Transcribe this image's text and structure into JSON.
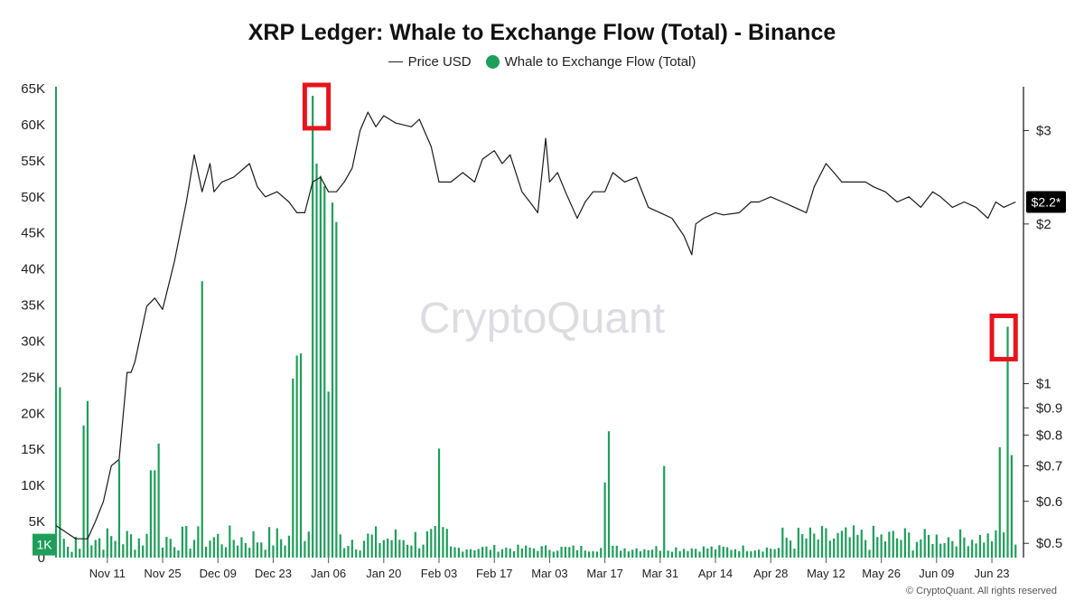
{
  "chart_data": {
    "type": "bar",
    "title": "XRP Ledger: Whale to Exchange Flow (Total) - Binance",
    "legend": [
      "Price USD",
      "Whale to Exchange Flow (Total)"
    ],
    "legend_placement": "top-center",
    "grid": false,
    "colors": {
      "flow": "#1e9e5a",
      "price": "#1a1a1a",
      "highlight": "#e8141b",
      "current_marker": "#000000"
    },
    "left_axis": {
      "ylim": [
        0,
        65000
      ],
      "ticks": [
        0,
        5000,
        10000,
        15000,
        20000,
        25000,
        30000,
        35000,
        40000,
        45000,
        50000,
        55000,
        60000,
        65000
      ],
      "tick_labels": [
        "0",
        "5K",
        "10K",
        "15K",
        "20K",
        "25K",
        "30K",
        "35K",
        "40K",
        "45K",
        "50K",
        "55K",
        "60K",
        "65K"
      ],
      "current_marker_label": "1K"
    },
    "right_axis": {
      "scale": "log",
      "ylim": [
        0.47,
        3.6
      ],
      "ticks": [
        0.5,
        0.6,
        0.7,
        0.8,
        0.9,
        1,
        2,
        3
      ],
      "tick_labels": [
        "$0.5",
        "$0.6",
        "$0.7",
        "$0.8",
        "$0.9",
        "$1",
        "$2",
        "$3"
      ],
      "current_marker_label": "$2.2*"
    },
    "x_axis": {
      "tick_labels": [
        "Nov 11",
        "Nov 25",
        "Dec 09",
        "Dec 23",
        "Jan 06",
        "Jan 20",
        "Feb 03",
        "Feb 17",
        "Mar 03",
        "Mar 17",
        "Mar 31",
        "Apr 14",
        "Apr 28",
        "May 12",
        "May 26",
        "Jun 09",
        "Jun 23"
      ],
      "start_date": "Oct 29",
      "end_date": "Jun 29"
    },
    "flow_series": {
      "name": "Whale to Exchange Flow (Total)",
      "spikes": [
        {
          "date": "Oct 30",
          "value": 23600
        },
        {
          "date": "Nov 01",
          "value": 1500
        },
        {
          "date": "Nov 02",
          "value": 800
        },
        {
          "date": "Nov 05",
          "value": 18300
        },
        {
          "date": "Nov 06",
          "value": 21700
        },
        {
          "date": "Nov 14",
          "value": 13500
        },
        {
          "date": "Nov 22",
          "value": 12100
        },
        {
          "date": "Nov 23",
          "value": 12100
        },
        {
          "date": "Nov 24",
          "value": 15800
        },
        {
          "date": "Dec 05",
          "value": 38300
        },
        {
          "date": "Dec 28",
          "value": 24800
        },
        {
          "date": "Dec 29",
          "value": 28000
        },
        {
          "date": "Dec 30",
          "value": 28300
        },
        {
          "date": "Jan 02",
          "value": 64000
        },
        {
          "date": "Jan 03",
          "value": 54600
        },
        {
          "date": "Jan 04",
          "value": 52900
        },
        {
          "date": "Jan 05",
          "value": 51500
        },
        {
          "date": "Jan 06",
          "value": 23000
        },
        {
          "date": "Jan 07",
          "value": 49200
        },
        {
          "date": "Jan 08",
          "value": 46500
        },
        {
          "date": "Feb 03",
          "value": 15100
        },
        {
          "date": "Mar 17",
          "value": 10400
        },
        {
          "date": "Mar 18",
          "value": 17500
        },
        {
          "date": "Apr 01",
          "value": 12700
        },
        {
          "date": "Jun 25",
          "value": 15300
        },
        {
          "date": "Jun 26",
          "value": 3500
        },
        {
          "date": "Jun 27",
          "value": 32000
        },
        {
          "date": "Jun 28",
          "value": 14200
        },
        {
          "date": "Jun 29",
          "value": 1800
        }
      ],
      "baseline_range": [
        800,
        4500
      ]
    },
    "price_series": {
      "name": "Price USD",
      "points": [
        {
          "date": "Oct 29",
          "value": 0.54
        },
        {
          "date": "Nov 03",
          "value": 0.51
        },
        {
          "date": "Nov 06",
          "value": 0.51
        },
        {
          "date": "Nov 08",
          "value": 0.55
        },
        {
          "date": "Nov 10",
          "value": 0.6
        },
        {
          "date": "Nov 12",
          "value": 0.7
        },
        {
          "date": "Nov 14",
          "value": 0.72
        },
        {
          "date": "Nov 16",
          "value": 1.05
        },
        {
          "date": "Nov 17",
          "value": 1.05
        },
        {
          "date": "Nov 18",
          "value": 1.1
        },
        {
          "date": "Nov 21",
          "value": 1.4
        },
        {
          "date": "Nov 23",
          "value": 1.45
        },
        {
          "date": "Nov 25",
          "value": 1.38
        },
        {
          "date": "Nov 28",
          "value": 1.7
        },
        {
          "date": "Dec 01",
          "value": 2.2
        },
        {
          "date": "Dec 03",
          "value": 2.7
        },
        {
          "date": "Dec 05",
          "value": 2.3
        },
        {
          "date": "Dec 07",
          "value": 2.6
        },
        {
          "date": "Dec 08",
          "value": 2.3
        },
        {
          "date": "Dec 10",
          "value": 2.4
        },
        {
          "date": "Dec 13",
          "value": 2.45
        },
        {
          "date": "Dec 17",
          "value": 2.6
        },
        {
          "date": "Dec 19",
          "value": 2.35
        },
        {
          "date": "Dec 21",
          "value": 2.25
        },
        {
          "date": "Dec 24",
          "value": 2.3
        },
        {
          "date": "Dec 27",
          "value": 2.2
        },
        {
          "date": "Dec 29",
          "value": 2.1
        },
        {
          "date": "Dec 31",
          "value": 2.1
        },
        {
          "date": "Jan 02",
          "value": 2.4
        },
        {
          "date": "Jan 04",
          "value": 2.45
        },
        {
          "date": "Jan 06",
          "value": 2.3
        },
        {
          "date": "Jan 08",
          "value": 2.3
        },
        {
          "date": "Jan 10",
          "value": 2.4
        },
        {
          "date": "Jan 12",
          "value": 2.55
        },
        {
          "date": "Jan 14",
          "value": 3.0
        },
        {
          "date": "Jan 16",
          "value": 3.25
        },
        {
          "date": "Jan 18",
          "value": 3.05
        },
        {
          "date": "Jan 20",
          "value": 3.2
        },
        {
          "date": "Jan 23",
          "value": 3.1
        },
        {
          "date": "Jan 27",
          "value": 3.05
        },
        {
          "date": "Jan 29",
          "value": 3.15
        },
        {
          "date": "Feb 01",
          "value": 2.8
        },
        {
          "date": "Feb 03",
          "value": 2.4
        },
        {
          "date": "Feb 06",
          "value": 2.4
        },
        {
          "date": "Feb 09",
          "value": 2.5
        },
        {
          "date": "Feb 12",
          "value": 2.4
        },
        {
          "date": "Feb 14",
          "value": 2.65
        },
        {
          "date": "Feb 17",
          "value": 2.75
        },
        {
          "date": "Feb 19",
          "value": 2.6
        },
        {
          "date": "Feb 21",
          "value": 2.7
        },
        {
          "date": "Feb 24",
          "value": 2.3
        },
        {
          "date": "Feb 26",
          "value": 2.2
        },
        {
          "date": "Feb 28",
          "value": 2.1
        },
        {
          "date": "Mar 02",
          "value": 2.9
        },
        {
          "date": "Mar 03",
          "value": 2.4
        },
        {
          "date": "Mar 05",
          "value": 2.5
        },
        {
          "date": "Mar 07",
          "value": 2.3
        },
        {
          "date": "Mar 10",
          "value": 2.05
        },
        {
          "date": "Mar 12",
          "value": 2.2
        },
        {
          "date": "Mar 14",
          "value": 2.3
        },
        {
          "date": "Mar 17",
          "value": 2.3
        },
        {
          "date": "Mar 19",
          "value": 2.5
        },
        {
          "date": "Mar 22",
          "value": 2.4
        },
        {
          "date": "Mar 25",
          "value": 2.45
        },
        {
          "date": "Mar 28",
          "value": 2.15
        },
        {
          "date": "Mar 31",
          "value": 2.1
        },
        {
          "date": "Apr 03",
          "value": 2.05
        },
        {
          "date": "Apr 06",
          "value": 1.9
        },
        {
          "date": "Apr 08",
          "value": 1.75
        },
        {
          "date": "Apr 09",
          "value": 2.0
        },
        {
          "date": "Apr 11",
          "value": 2.05
        },
        {
          "date": "Apr 14",
          "value": 2.1
        },
        {
          "date": "Apr 16",
          "value": 2.08
        },
        {
          "date": "Apr 20",
          "value": 2.1
        },
        {
          "date": "Apr 23",
          "value": 2.2
        },
        {
          "date": "Apr 25",
          "value": 2.2
        },
        {
          "date": "Apr 28",
          "value": 2.25
        },
        {
          "date": "May 01",
          "value": 2.2
        },
        {
          "date": "May 04",
          "value": 2.15
        },
        {
          "date": "May 07",
          "value": 2.1
        },
        {
          "date": "May 09",
          "value": 2.35
        },
        {
          "date": "May 12",
          "value": 2.6
        },
        {
          "date": "May 14",
          "value": 2.5
        },
        {
          "date": "May 16",
          "value": 2.4
        },
        {
          "date": "May 19",
          "value": 2.4
        },
        {
          "date": "May 22",
          "value": 2.4
        },
        {
          "date": "May 24",
          "value": 2.35
        },
        {
          "date": "May 27",
          "value": 2.3
        },
        {
          "date": "May 30",
          "value": 2.2
        },
        {
          "date": "Jun 02",
          "value": 2.25
        },
        {
          "date": "Jun 05",
          "value": 2.15
        },
        {
          "date": "Jun 08",
          "value": 2.3
        },
        {
          "date": "Jun 10",
          "value": 2.25
        },
        {
          "date": "Jun 13",
          "value": 2.15
        },
        {
          "date": "Jun 16",
          "value": 2.2
        },
        {
          "date": "Jun 19",
          "value": 2.15
        },
        {
          "date": "Jun 22",
          "value": 2.05
        },
        {
          "date": "Jun 24",
          "value": 2.2
        },
        {
          "date": "Jun 26",
          "value": 2.15
        },
        {
          "date": "Jun 29",
          "value": 2.2
        }
      ]
    },
    "highlights": [
      {
        "date_from": "Dec 31",
        "date_to": "Jan 06",
        "value_from": 59500,
        "value_to": 65500
      },
      {
        "date_from": "Jun 23",
        "date_to": "Jun 29",
        "value_from": 27500,
        "value_to": 33500
      }
    ],
    "watermark": "CryptoQuant",
    "copyright": "© CryptoQuant. All rights reserved"
  }
}
